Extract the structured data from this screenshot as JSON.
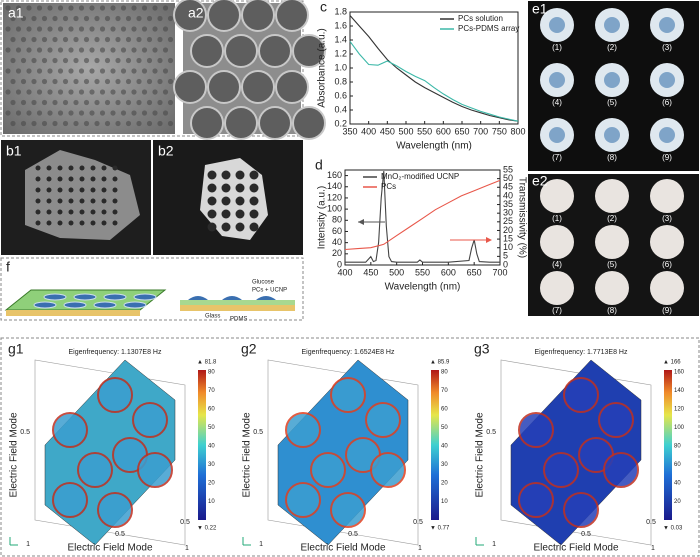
{
  "chart_data": [
    {
      "type": "line",
      "panel": "c",
      "xlabel": "Wavelength (nm)",
      "ylabel": "Absorbance (a.u.)",
      "xlim": [
        350,
        800
      ],
      "xticks": [
        350,
        400,
        450,
        500,
        550,
        600,
        650,
        700,
        750,
        800
      ],
      "ylim": [
        0.2,
        1.8
      ],
      "yticks": [
        0.2,
        0.4,
        0.6,
        0.8,
        {
          "value": 1.0,
          "label": "1.0"
        },
        1.2,
        1.4,
        1.6,
        1.8
      ],
      "legend": "upper right",
      "series": [
        {
          "name": "PCs solution",
          "color": "#333333",
          "x": [
            350,
            375,
            400,
            425,
            450,
            475,
            500,
            525,
            550,
            575,
            600,
            625,
            650,
            675,
            700,
            725,
            750,
            775,
            800
          ],
          "values": [
            1.75,
            1.6,
            1.45,
            1.28,
            1.12,
            1.0,
            0.9,
            0.8,
            0.72,
            0.65,
            0.58,
            0.51,
            0.45,
            0.4,
            0.36,
            0.32,
            0.29,
            0.26,
            0.24
          ]
        },
        {
          "name": "PCs-PDMS array",
          "color": "#3cb8a8",
          "x": [
            350,
            375,
            400,
            425,
            450,
            475,
            500,
            525,
            550,
            575,
            600,
            625,
            650,
            675,
            700,
            725,
            750,
            775,
            800
          ],
          "values": [
            1.38,
            1.2,
            1.05,
            1.04,
            1.1,
            1.03,
            0.95,
            0.88,
            0.82,
            0.72,
            0.63,
            0.55,
            0.48,
            0.43,
            0.38,
            0.34,
            0.3,
            0.27,
            0.24
          ]
        }
      ]
    },
    {
      "type": "line",
      "panel": "d",
      "xlabel": "Wavelength (nm)",
      "ylabel": "Intensity (a.u.)",
      "y2label": "Transmissivity (%)",
      "xlim": [
        400,
        700
      ],
      "xticks": [
        400,
        450,
        500,
        550,
        600,
        650,
        700
      ],
      "ylim": [
        0,
        170
      ],
      "yticks": [
        0,
        20,
        40,
        60,
        80,
        100,
        120,
        140,
        160
      ],
      "y2lim": [
        0,
        55
      ],
      "y2ticks": [
        0,
        5,
        10,
        15,
        20,
        25,
        30,
        35,
        40,
        45,
        50,
        55
      ],
      "legend": "upper left",
      "series": [
        {
          "name": "MnO₂-modified UCNP",
          "color": "#444444",
          "x": [
            400,
            420,
            440,
            450,
            455,
            460,
            465,
            470,
            475,
            480,
            485,
            490,
            500,
            520,
            540,
            545,
            550,
            600,
            640,
            645,
            650,
            655,
            660,
            680,
            700
          ],
          "values": [
            5,
            5,
            5,
            15,
            6,
            8,
            40,
            120,
            168,
            70,
            15,
            6,
            5,
            5,
            5,
            9,
            5,
            5,
            8,
            30,
            45,
            20,
            6,
            5,
            5
          ]
        },
        {
          "name": "PCs",
          "color": "#e8574a",
          "axis": "y2",
          "x": [
            400,
            425,
            450,
            475,
            500,
            525,
            550,
            575,
            600,
            625,
            650,
            675,
            700
          ],
          "values": [
            9,
            9.5,
            10,
            12,
            17,
            22,
            27,
            32,
            36,
            40,
            43,
            46,
            49
          ]
        }
      ]
    }
  ],
  "panel_labels": [
    "a1",
    "a2",
    "b1",
    "b2",
    "e1",
    "e2",
    "f",
    "g1",
    "g2",
    "g3"
  ],
  "e1_labels": [
    "(1)",
    "(2)",
    "(3)",
    "(4)",
    "(5)",
    "(6)",
    "(7)",
    "(8)",
    "(9)"
  ],
  "e2_labels": [
    "(1)",
    "(2)",
    "(3)",
    "(4)",
    "(5)",
    "(6)",
    "(7)",
    "(8)",
    "(9)"
  ],
  "f_labels": [
    "Glucose",
    "PCs + UCNP",
    "Glass",
    "PDMS"
  ],
  "g_panels": [
    {
      "eigenfrequency": "Eigenfrequency: 1.1307E8 Hz",
      "max": "▲ 81.8",
      "min": "▼ 0.22",
      "colorbar_ticks": [
        "80",
        "70",
        "60",
        "50",
        "40",
        "30",
        "20",
        "10"
      ],
      "ylabel": "Electric Field Mode",
      "xlabel": "Electric Field Mode",
      "left_ticks": [
        "0.5",
        "1"
      ],
      "bottom_ticks": [
        "0.5",
        "0.5",
        "1"
      ]
    },
    {
      "eigenfrequency": "Eigenfrequency: 1.6524E8 Hz",
      "max": "▲ 85.9",
      "min": "▼ 0.77",
      "colorbar_ticks": [
        "80",
        "70",
        "60",
        "50",
        "40",
        "30",
        "20",
        "10"
      ],
      "ylabel": "Electric Field Mode",
      "xlabel": "Electric Field Mode",
      "left_ticks": [
        "0.5",
        "1"
      ],
      "bottom_ticks": [
        "0.5",
        "0.5",
        "1"
      ]
    },
    {
      "eigenfrequency": "Eigenfrequency: 1.7713E8 Hz",
      "max": "▲ 166",
      "min": "▼ 0.03",
      "colorbar_ticks": [
        "160",
        "140",
        "120",
        "100",
        "80",
        "60",
        "40",
        "20"
      ],
      "ylabel": "Electric Field Mode",
      "xlabel": "Electric Field Mode",
      "left_ticks": [
        "0.5",
        "1"
      ],
      "bottom_ticks": [
        "0.5",
        "0.5",
        "1"
      ]
    }
  ]
}
